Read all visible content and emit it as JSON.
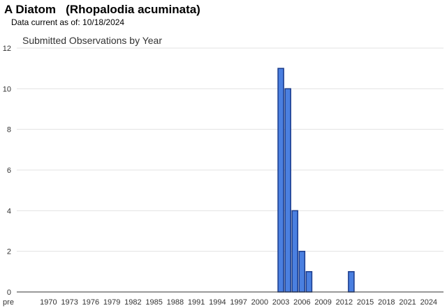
{
  "header": {
    "title": "A Diatom   (Rhopalodia acuminata)",
    "data_current": "Data current as of: 10/18/2024"
  },
  "chart_data": {
    "type": "bar",
    "title": "Submitted Observations by Year",
    "xlabel": "",
    "ylabel": "",
    "ylim": [
      0,
      12
    ],
    "yticks": [
      0,
      2,
      4,
      6,
      8,
      10,
      12
    ],
    "grid": true,
    "legend": "none",
    "bar_color": "#4a7fe0",
    "bar_edge_color": "#1a3a8a",
    "xtick_labels": [
      "pre",
      "1970",
      "1973",
      "1976",
      "1979",
      "1982",
      "1985",
      "1988",
      "1991",
      "1994",
      "1997",
      "2000",
      "2003",
      "2006",
      "2009",
      "2012",
      "2015",
      "2018",
      "2021",
      "2024"
    ],
    "series": [
      {
        "categories": [
          "2003",
          "2004",
          "2005",
          "2006",
          "2007",
          "2013"
        ],
        "values": [
          11,
          10,
          4,
          2,
          1,
          1
        ]
      }
    ]
  }
}
